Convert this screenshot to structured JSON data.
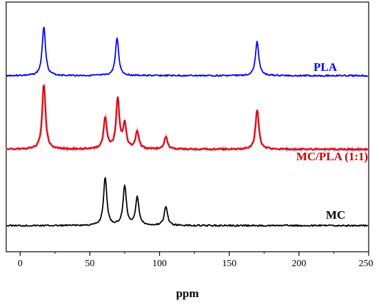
{
  "chart_data": {
    "type": "line",
    "title": "",
    "xlabel": "ppm",
    "ylabel": "",
    "xlim": [
      -10,
      250
    ],
    "x_reversed": false,
    "xticks": [
      0,
      50,
      100,
      150,
      200,
      250
    ],
    "grid": false,
    "legend": "inline labels at right of each trace",
    "series": [
      {
        "name": "PLA",
        "color": "#0000ff",
        "offset": 2,
        "peaks": [
          {
            "ppm": 17,
            "height": 0.72
          },
          {
            "ppm": 69.5,
            "height": 0.55
          },
          {
            "ppm": 170,
            "height": 0.5
          }
        ]
      },
      {
        "name": "MC/PLA (1:1)",
        "color": "#cc0000",
        "offset": 1,
        "peaks": [
          {
            "ppm": 17,
            "height": 0.95
          },
          {
            "ppm": 61,
            "height": 0.45
          },
          {
            "ppm": 70,
            "height": 0.72
          },
          {
            "ppm": 75,
            "height": 0.35
          },
          {
            "ppm": 84,
            "height": 0.26
          },
          {
            "ppm": 104.5,
            "height": 0.18
          },
          {
            "ppm": 170,
            "height": 0.58
          }
        ]
      },
      {
        "name": "MC",
        "color": "#000000",
        "offset": 0,
        "peaks": [
          {
            "ppm": 61,
            "height": 0.7
          },
          {
            "ppm": 75,
            "height": 0.58
          },
          {
            "ppm": 84,
            "height": 0.42
          },
          {
            "ppm": 104.5,
            "height": 0.28
          }
        ]
      }
    ]
  }
}
